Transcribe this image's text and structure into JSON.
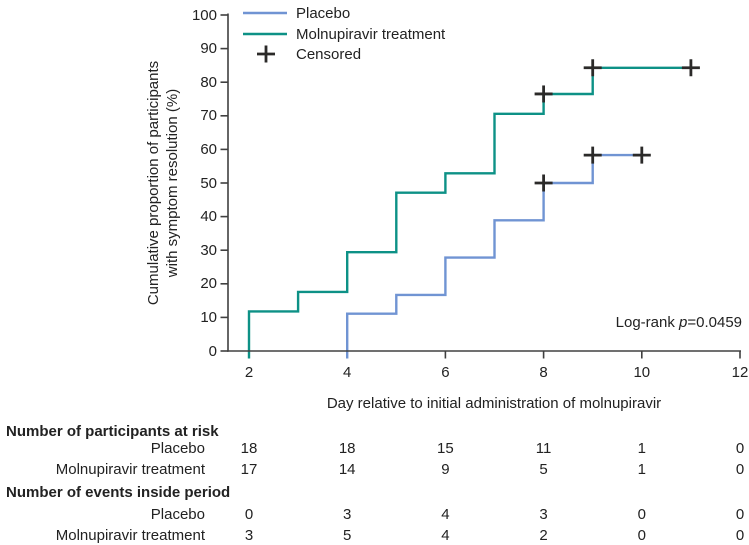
{
  "chart_data": {
    "type": "line",
    "subtype": "kaplan-meier-step",
    "title": "",
    "xlabel": "Day relative to initial administration of molnupiravir",
    "ylabel_line1": "Cumulative proportion of participants",
    "ylabel_line2": "with symptom resolution (%)",
    "xlim": [
      2,
      12
    ],
    "ylim": [
      0,
      100
    ],
    "x_ticks": [
      2,
      4,
      6,
      8,
      10,
      12
    ],
    "y_ticks": [
      0,
      10,
      20,
      30,
      40,
      50,
      60,
      70,
      80,
      90,
      100
    ],
    "grid": false,
    "legend_position": "top-left-inside",
    "colors": {
      "placebo": "#7094d3",
      "molnupiravir": "#0d9186",
      "censored": "#2b2a29",
      "axis": "#404040",
      "text": "#222222"
    },
    "legend": [
      {
        "label": "Placebo",
        "type": "line",
        "color_key": "placebo"
      },
      {
        "label": "Molnupiravir treatment",
        "type": "line",
        "color_key": "molnupiravir"
      },
      {
        "label": "Censored",
        "type": "cross",
        "color_key": "censored"
      }
    ],
    "series": [
      {
        "name": "Molnupiravir treatment",
        "color_key": "molnupiravir",
        "steps": [
          [
            2,
            0
          ],
          [
            2,
            11.8
          ],
          [
            3,
            11.8
          ],
          [
            3,
            17.6
          ],
          [
            4,
            17.6
          ],
          [
            4,
            29.4
          ],
          [
            5,
            29.4
          ],
          [
            5,
            47.1
          ],
          [
            6,
            47.1
          ],
          [
            6,
            52.9
          ],
          [
            7,
            52.9
          ],
          [
            7,
            70.6
          ],
          [
            8,
            70.6
          ],
          [
            8,
            76.5
          ],
          [
            9,
            76.5
          ],
          [
            9,
            84.3
          ],
          [
            11,
            84.3
          ]
        ],
        "censored": [
          [
            8,
            76.5
          ],
          [
            9,
            84.3
          ],
          [
            11,
            84.3
          ]
        ]
      },
      {
        "name": "Placebo",
        "color_key": "placebo",
        "steps": [
          [
            4,
            0
          ],
          [
            4,
            11.1
          ],
          [
            5,
            11.1
          ],
          [
            5,
            16.7
          ],
          [
            6,
            16.7
          ],
          [
            6,
            27.8
          ],
          [
            7,
            27.8
          ],
          [
            7,
            38.9
          ],
          [
            8,
            38.9
          ],
          [
            8,
            50
          ],
          [
            9,
            50
          ],
          [
            9,
            58.3
          ],
          [
            10,
            58.3
          ]
        ],
        "censored": [
          [
            8,
            50
          ],
          [
            9,
            58.3
          ],
          [
            10,
            58.3
          ]
        ]
      }
    ],
    "annotation": {
      "prefix": "Log-rank ",
      "italic": "p",
      "rest": "=0.0459"
    }
  },
  "risk_table": {
    "column_days": [
      2,
      4,
      6,
      8,
      10,
      12
    ],
    "sections": [
      {
        "header": "Number of participants at risk",
        "rows": [
          {
            "label": "Placebo",
            "values": [
              "18",
              "18",
              "15",
              "11",
              "1",
              "0"
            ]
          },
          {
            "label": "Molnupiravir treatment",
            "values": [
              "17",
              "14",
              "9",
              "5",
              "1",
              "0"
            ]
          }
        ]
      },
      {
        "header": "Number of events inside period",
        "rows": [
          {
            "label": "Placebo",
            "values": [
              "0",
              "3",
              "4",
              "3",
              "0",
              "0"
            ]
          },
          {
            "label": "Molnupiravir treatment",
            "values": [
              "3",
              "5",
              "4",
              "2",
              "0",
              "0"
            ]
          }
        ]
      }
    ]
  }
}
